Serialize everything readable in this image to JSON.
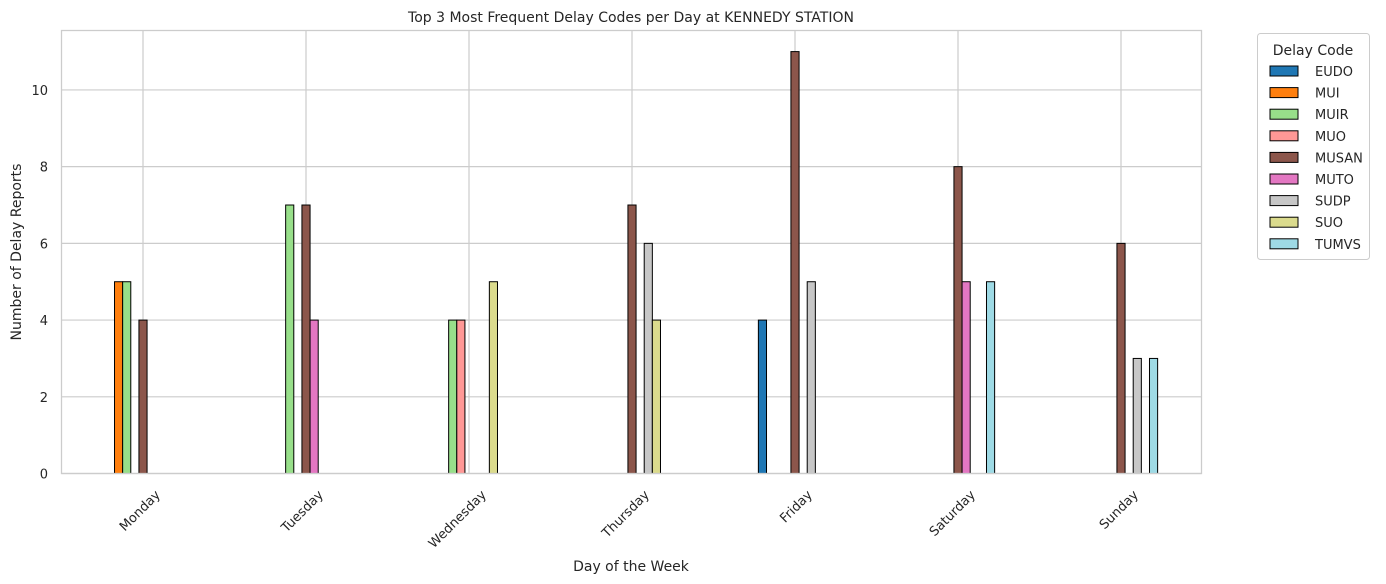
{
  "chart_data": {
    "type": "bar",
    "title": "Top 3 Most Frequent Delay Codes per Day at KENNEDY STATION",
    "xlabel": "Day of the Week",
    "ylabel": "Number of Delay Reports",
    "ylim": [
      0,
      11.55
    ],
    "yticks": [
      0,
      2,
      4,
      6,
      8,
      10
    ],
    "grid": true,
    "legend_title": "Delay Code",
    "legend_position": "outside-top-right",
    "categories": [
      "Monday",
      "Tuesday",
      "Wednesday",
      "Thursday",
      "Friday",
      "Saturday",
      "Sunday"
    ],
    "series": [
      {
        "name": "EUDO",
        "color": "#1f77b4",
        "values": [
          0,
          0,
          0,
          0,
          4,
          0,
          0
        ]
      },
      {
        "name": "MUI",
        "color": "#ff7f0e",
        "values": [
          5,
          0,
          0,
          0,
          0,
          0,
          0
        ]
      },
      {
        "name": "MUIR",
        "color": "#98df8a",
        "values": [
          5,
          7,
          4,
          0,
          0,
          0,
          0
        ]
      },
      {
        "name": "MUO",
        "color": "#ff9896",
        "values": [
          0,
          0,
          4,
          0,
          0,
          0,
          0
        ]
      },
      {
        "name": "MUSAN",
        "color": "#8c564b",
        "values": [
          4,
          7,
          0,
          7,
          11,
          8,
          6
        ]
      },
      {
        "name": "MUTO",
        "color": "#e377c2",
        "values": [
          0,
          4,
          0,
          0,
          0,
          5,
          0
        ]
      },
      {
        "name": "SUDP",
        "color": "#c7c7c7",
        "values": [
          0,
          0,
          0,
          6,
          5,
          0,
          3
        ]
      },
      {
        "name": "SUO",
        "color": "#dbdb8d",
        "values": [
          0,
          0,
          5,
          4,
          0,
          0,
          0
        ]
      },
      {
        "name": "TUMVS",
        "color": "#9edae5",
        "values": [
          0,
          0,
          0,
          0,
          0,
          5,
          3
        ]
      }
    ]
  }
}
